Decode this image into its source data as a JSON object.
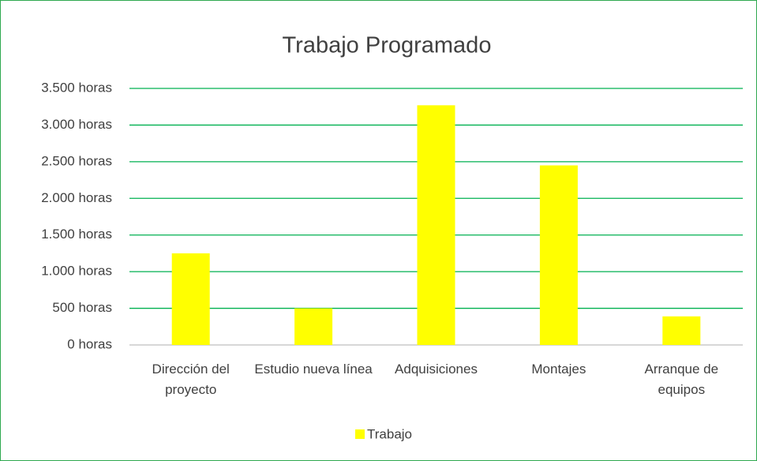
{
  "chart_data": {
    "type": "bar",
    "title": "Trabajo Programado",
    "categories": [
      "Dirección del proyecto",
      "Estudio nueva línea",
      "Adquisiciones",
      "Montajes",
      "Arranque de equipos"
    ],
    "series": [
      {
        "name": "Trabajo",
        "color": "#ffff00",
        "values": [
          1250,
          500,
          3270,
          2450,
          390
        ]
      }
    ],
    "ylim": [
      0,
      3500
    ],
    "yticks": [
      {
        "value": 0,
        "label": "0 horas"
      },
      {
        "value": 500,
        "label": "500 horas"
      },
      {
        "value": 1000,
        "label": "1.000 horas"
      },
      {
        "value": 1500,
        "label": "1.500 horas"
      },
      {
        "value": 2000,
        "label": "2.000 horas"
      },
      {
        "value": 2500,
        "label": "2.500 horas"
      },
      {
        "value": 3000,
        "label": "3.000 horas"
      },
      {
        "value": 3500,
        "label": "3.500 horas"
      }
    ],
    "grid": true,
    "grid_color": "#00b050",
    "legend": "bottom"
  }
}
